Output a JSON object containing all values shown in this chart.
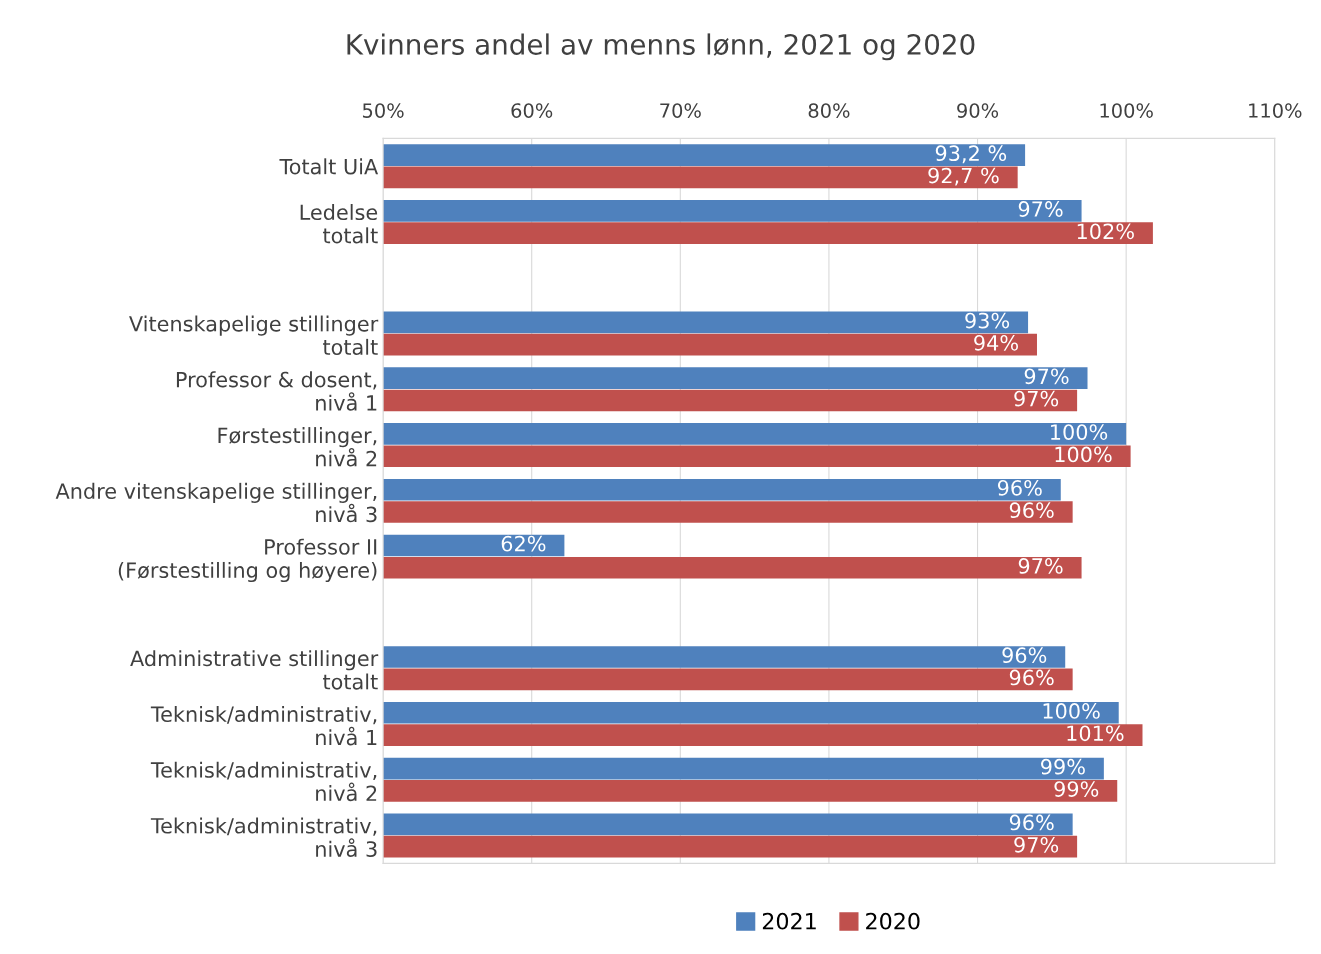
{
  "chart_data": {
    "type": "bar",
    "orientation": "horizontal",
    "title": "Kvinners andel av menns lønn, 2021 og 2020",
    "categories": [
      "Totalt UiA",
      "Ledelse\ntotalt",
      null,
      "Vitenskapelige stillinger\ntotalt",
      "Professor & dosent,\nnivå 1",
      "Førstestillinger,\nnivå 2",
      "Andre vitenskapelige stillinger,\nnivå 3",
      "Professor II\n(Førstestilling og høyere)",
      null,
      "Administrative stillinger\ntotalt",
      "Teknisk/administrativ,\nnivå 1",
      "Teknisk/administrativ,\nnivå 2",
      "Teknisk/administrativ,\nnivå 3"
    ],
    "series": [
      {
        "name": "2021",
        "color": "#4f81bd",
        "values": [
          93.2,
          97.0,
          null,
          93.4,
          97.4,
          100.0,
          95.6,
          62.2,
          null,
          95.9,
          99.5,
          98.5,
          96.4
        ],
        "value_labels": [
          "93,2 %",
          "97%",
          null,
          "93%",
          "97%",
          "100%",
          "96%",
          "62%",
          null,
          "96%",
          "100%",
          "99%",
          "96%"
        ]
      },
      {
        "name": "2020",
        "color": "#c0504d",
        "values": [
          92.7,
          101.8,
          null,
          94.0,
          96.7,
          100.3,
          96.4,
          97.0,
          null,
          96.4,
          101.1,
          99.4,
          96.7
        ],
        "value_labels": [
          "92,7 %",
          "102%",
          null,
          "94%",
          "97%",
          "100%",
          "96%",
          "97%",
          null,
          "96%",
          "101%",
          "99%",
          "97%"
        ]
      }
    ],
    "xlim": [
      50,
      110
    ],
    "xticks": [
      {
        "value": 50,
        "label": "50%"
      },
      {
        "value": 60,
        "label": "60%"
      },
      {
        "value": 70,
        "label": "70%"
      },
      {
        "value": 80,
        "label": "80%"
      },
      {
        "value": 90,
        "label": "90%"
      },
      {
        "value": 100,
        "label": "100%"
      },
      {
        "value": 110,
        "label": "110%"
      }
    ],
    "grid": "x",
    "legend": "bottom"
  }
}
